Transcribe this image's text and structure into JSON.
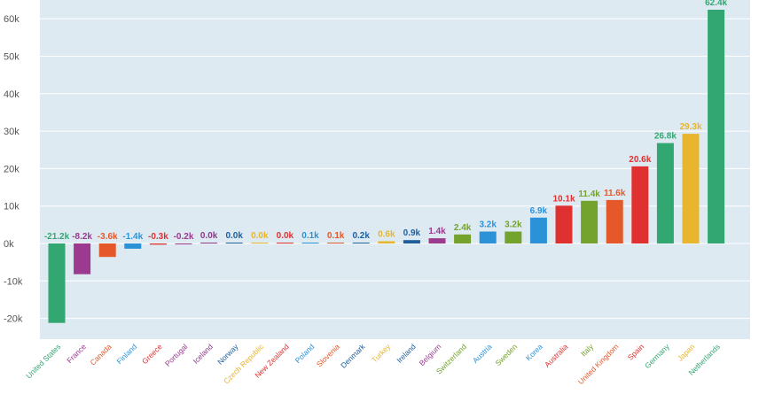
{
  "chart_data": {
    "type": "bar",
    "title": "",
    "xlabel": "",
    "ylabel": "",
    "ylim": [
      -27000,
      65000
    ],
    "yticks": [
      {
        "value": -20000,
        "label": "-20k"
      },
      {
        "value": -10000,
        "label": "-10k"
      },
      {
        "value": 0,
        "label": "0k"
      },
      {
        "value": 10000,
        "label": "10k"
      },
      {
        "value": 20000,
        "label": "20k"
      },
      {
        "value": 30000,
        "label": "30k"
      },
      {
        "value": 40000,
        "label": "40k"
      },
      {
        "value": 50000,
        "label": "50k"
      },
      {
        "value": 60000,
        "label": "60k"
      }
    ],
    "grid": true,
    "legend": "none",
    "plot_background": "#deeaf2",
    "bars": [
      {
        "category": "United States",
        "value": -21200,
        "label": "-21.2k",
        "color": "#33a772"
      },
      {
        "category": "France",
        "value": -8200,
        "label": "-8.2k",
        "color": "#9b3a8f"
      },
      {
        "category": "Canada",
        "value": -3600,
        "label": "-3.6k",
        "color": "#e5582a"
      },
      {
        "category": "Finland",
        "value": -1400,
        "label": "-1.4k",
        "color": "#2b92d8"
      },
      {
        "category": "Greece",
        "value": -300,
        "label": "-0.3k",
        "color": "#e03131"
      },
      {
        "category": "Portugal",
        "value": -200,
        "label": "-0.2k",
        "color": "#9b3a8f"
      },
      {
        "category": "Iceland",
        "value": 0,
        "label": "0.0k",
        "color": "#8a3a8a"
      },
      {
        "category": "Norway",
        "value": 0,
        "label": "0.0k",
        "color": "#1d5f9e"
      },
      {
        "category": "Czech Republic",
        "value": 0,
        "label": "0.0k",
        "color": "#e8b52e"
      },
      {
        "category": "New Zealand",
        "value": 0,
        "label": "0.0k",
        "color": "#e03131"
      },
      {
        "category": "Poland",
        "value": 100,
        "label": "0.1k",
        "color": "#2b92d8"
      },
      {
        "category": "Slovenia",
        "value": 100,
        "label": "0.1k",
        "color": "#e5582a"
      },
      {
        "category": "Denmark",
        "value": 200,
        "label": "0.2k",
        "color": "#1d5f9e"
      },
      {
        "category": "Turkey",
        "value": 600,
        "label": "0.6k",
        "color": "#e8b52e"
      },
      {
        "category": "Ireland",
        "value": 900,
        "label": "0.9k",
        "color": "#1d5f9e"
      },
      {
        "category": "Belgium",
        "value": 1400,
        "label": "1.4k",
        "color": "#9b3a8f"
      },
      {
        "category": "Switzerland",
        "value": 2400,
        "label": "2.4k",
        "color": "#73a32c"
      },
      {
        "category": "Austria",
        "value": 3200,
        "label": "3.2k",
        "color": "#2b92d8"
      },
      {
        "category": "Sweden",
        "value": 3200,
        "label": "3.2k",
        "color": "#73a32c"
      },
      {
        "category": "Korea",
        "value": 6900,
        "label": "6.9k",
        "color": "#2b92d8"
      },
      {
        "category": "Australia",
        "value": 10100,
        "label": "10.1k",
        "color": "#e03131"
      },
      {
        "category": "Italy",
        "value": 11400,
        "label": "11.4k",
        "color": "#73a32c"
      },
      {
        "category": "United Kingdom",
        "value": 11600,
        "label": "11.6k",
        "color": "#e5582a"
      },
      {
        "category": "Spain",
        "value": 20600,
        "label": "20.6k",
        "color": "#e03131"
      },
      {
        "category": "Germany",
        "value": 26800,
        "label": "26.8k",
        "color": "#33a772"
      },
      {
        "category": "Japan",
        "value": 29300,
        "label": "29.3k",
        "color": "#e8b52e"
      },
      {
        "category": "Netherlands",
        "value": 62400,
        "label": "62.4k",
        "color": "#33a772"
      }
    ]
  }
}
